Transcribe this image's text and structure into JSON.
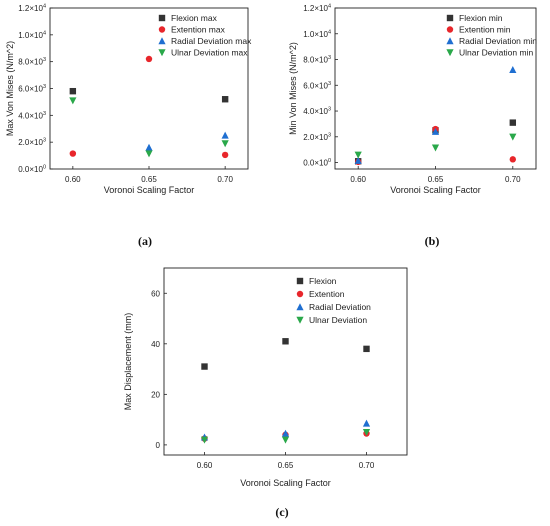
{
  "chart_data": [
    {
      "type": "scatter",
      "caption": "(a)",
      "xlabel": "Voronoi Scaling Factor",
      "ylabel": "Max Von Mises (N/m^2)",
      "x": [
        0.6,
        0.65,
        0.7
      ],
      "xticks": [
        "0.60",
        "0.65",
        "0.70"
      ],
      "xlim": [
        0.585,
        0.715
      ],
      "ylim": [
        0,
        12000
      ],
      "yticks": [
        0,
        2000,
        4000,
        6000,
        8000,
        10000,
        12000
      ],
      "ytick_labels": [
        {
          "mant": "0.0×10",
          "exp": "0"
        },
        {
          "mant": "2.0×10",
          "exp": "3"
        },
        {
          "mant": "4.0×10",
          "exp": "3"
        },
        {
          "mant": "6.0×10",
          "exp": "3"
        },
        {
          "mant": "8.0×10",
          "exp": "3"
        },
        {
          "mant": "1.0×10",
          "exp": "4"
        },
        {
          "mant": "1.2×10",
          "exp": "4"
        }
      ],
      "legend_position": "top-right",
      "series": [
        {
          "name": "Flexion max",
          "marker": "square",
          "color": "#333333",
          "values": [
            5800,
            null,
            5200
          ]
        },
        {
          "name": "Extention max",
          "marker": "circle",
          "color": "#e8262b",
          "values": [
            1150,
            8200,
            1050
          ]
        },
        {
          "name": "Radial Deviation max",
          "marker": "triangle-up",
          "color": "#1f6fd1",
          "values": [
            null,
            1600,
            2500
          ]
        },
        {
          "name": "Ulnar Deviation max",
          "marker": "triangle-down",
          "color": "#2aa84a",
          "values": [
            5100,
            1150,
            1900
          ]
        }
      ]
    },
    {
      "type": "scatter",
      "caption": "(b)",
      "xlabel": "Voronoi Scaling Factor",
      "ylabel": "Min Von Mises (N/m^2)",
      "x": [
        0.6,
        0.65,
        0.7
      ],
      "xticks": [
        "0.60",
        "0.65",
        "0.70"
      ],
      "xlim": [
        0.585,
        0.715
      ],
      "ylim": [
        -500,
        12000
      ],
      "yticks": [
        0,
        2000,
        4000,
        6000,
        8000,
        10000,
        12000
      ],
      "ytick_labels": [
        {
          "mant": "0.0×10",
          "exp": "0"
        },
        {
          "mant": "2.0×10",
          "exp": "3"
        },
        {
          "mant": "4.0×10",
          "exp": "3"
        },
        {
          "mant": "6.0×10",
          "exp": "3"
        },
        {
          "mant": "8.0×10",
          "exp": "3"
        },
        {
          "mant": "1.0×10",
          "exp": "4"
        },
        {
          "mant": "1.2×10",
          "exp": "4"
        }
      ],
      "legend_position": "top-right",
      "series": [
        {
          "name": "Flexion min",
          "marker": "square",
          "color": "#333333",
          "values": [
            100,
            2500,
            3100
          ]
        },
        {
          "name": "Extention min",
          "marker": "circle",
          "color": "#e8262b",
          "values": [
            50,
            2600,
            250
          ]
        },
        {
          "name": "Radial Deviation min",
          "marker": "triangle-up",
          "color": "#1f6fd1",
          "values": [
            150,
            2400,
            7200
          ]
        },
        {
          "name": "Ulnar Deviation min",
          "marker": "triangle-down",
          "color": "#2aa84a",
          "values": [
            600,
            1150,
            2000
          ]
        }
      ]
    },
    {
      "type": "scatter",
      "caption": "(c)",
      "xlabel": "Voronoi Scaling Factor",
      "ylabel": "Max Displacement (mm)",
      "x": [
        0.6,
        0.65,
        0.7
      ],
      "xticks": [
        "0.60",
        "0.65",
        "0.70"
      ],
      "xlim": [
        0.575,
        0.725
      ],
      "ylim": [
        -4,
        70
      ],
      "yticks": [
        0,
        20,
        40,
        60
      ],
      "ytick_labels": [
        {
          "mant": "0",
          "exp": ""
        },
        {
          "mant": "20",
          "exp": ""
        },
        {
          "mant": "40",
          "exp": ""
        },
        {
          "mant": "60",
          "exp": ""
        }
      ],
      "legend_position": "top-right",
      "series": [
        {
          "name": "Flexion",
          "marker": "square",
          "color": "#333333",
          "values": [
            31,
            41,
            38
          ]
        },
        {
          "name": "Extention",
          "marker": "circle",
          "color": "#e8262b",
          "values": [
            2.5,
            4,
            4.5
          ]
        },
        {
          "name": "Radial Deviation",
          "marker": "triangle-up",
          "color": "#1f6fd1",
          "values": [
            3,
            4.5,
            8.5
          ]
        },
        {
          "name": "Ulnar Deviation",
          "marker": "triangle-down",
          "color": "#2aa84a",
          "values": [
            2,
            2,
            5
          ]
        }
      ]
    }
  ]
}
